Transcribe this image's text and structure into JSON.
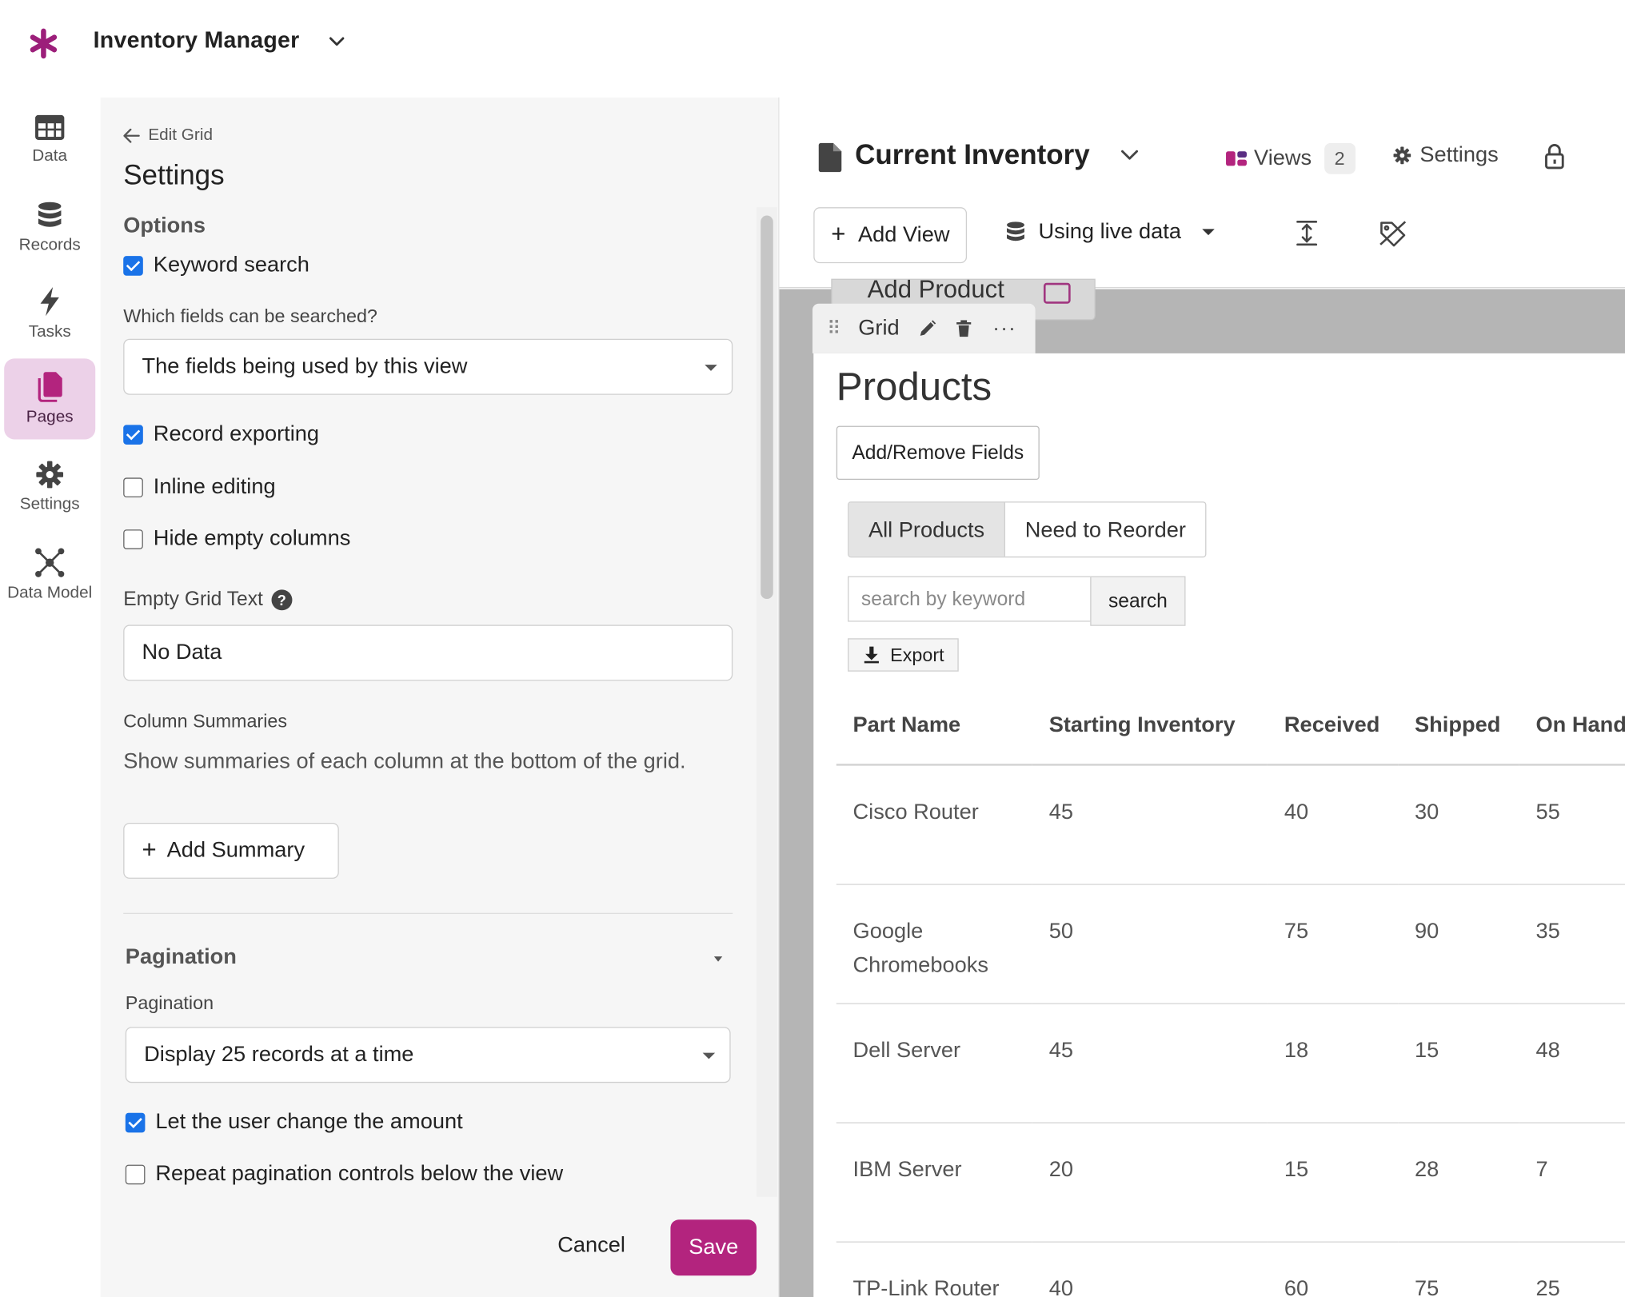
{
  "app": {
    "title": "Inventory Manager"
  },
  "rail": [
    {
      "label": "Data",
      "icon": "table-icon"
    },
    {
      "label": "Records",
      "icon": "database-icon"
    },
    {
      "label": "Tasks",
      "icon": "bolt-icon"
    },
    {
      "label": "Pages",
      "icon": "pages-icon",
      "active": true
    },
    {
      "label": "Settings",
      "icon": "gear-icon"
    },
    {
      "label": "Data Model",
      "icon": "network-icon"
    }
  ],
  "panel": {
    "back_label": "Edit Grid",
    "title": "Settings",
    "options_title": "Options",
    "keyword_search": {
      "label": "Keyword search",
      "checked": true
    },
    "fields_label": "Which fields can be searched?",
    "fields_value": "The fields being used by this view",
    "record_exporting": {
      "label": "Record exporting",
      "checked": true
    },
    "inline_editing": {
      "label": "Inline editing",
      "checked": false
    },
    "hide_empty": {
      "label": "Hide empty columns",
      "checked": false
    },
    "empty_text_label": "Empty Grid Text",
    "empty_text_value": "No Data",
    "summaries_label": "Column Summaries",
    "summaries_desc": "Show summaries of each column at the bottom of the grid.",
    "add_summary": "Add Summary",
    "pagination_title": "Pagination",
    "pagination_label": "Pagination",
    "pagination_value": "Display 25 records at a time",
    "let_change": {
      "label": "Let the user change the amount",
      "checked": true
    },
    "repeat_controls": {
      "label": "Repeat pagination controls below the view",
      "checked": false
    },
    "cancel": "Cancel",
    "save": "Save"
  },
  "main": {
    "page_title": "Current Inventory",
    "views_label": "Views",
    "views_count": "2",
    "settings_label": "Settings",
    "add_view": "Add View",
    "live_data": "Using live data",
    "ghost_label": "Add Product",
    "grid_tab": "Grid",
    "products_title": "Products",
    "add_remove_fields": "Add/Remove Fields",
    "filters": [
      "All Products",
      "Need to Reorder"
    ],
    "search_placeholder": "search by keyword",
    "search_btn": "search",
    "export": "Export",
    "columns": [
      "Part Name",
      "Starting Inventory",
      "Received",
      "Shipped",
      "On Hand"
    ],
    "rows": [
      [
        "Cisco Router",
        "45",
        "40",
        "30",
        "55"
      ],
      [
        "Google Chromebooks",
        "50",
        "75",
        "90",
        "35"
      ],
      [
        "Dell Server",
        "45",
        "18",
        "15",
        "48"
      ],
      [
        "IBM Server",
        "20",
        "15",
        "28",
        "7"
      ],
      [
        "TP-Link Router",
        "40",
        "60",
        "75",
        "25"
      ]
    ]
  },
  "colors": {
    "brand": "#b3247e",
    "checkbox": "#1a73e8",
    "active_rail": "#ecd1e8"
  }
}
